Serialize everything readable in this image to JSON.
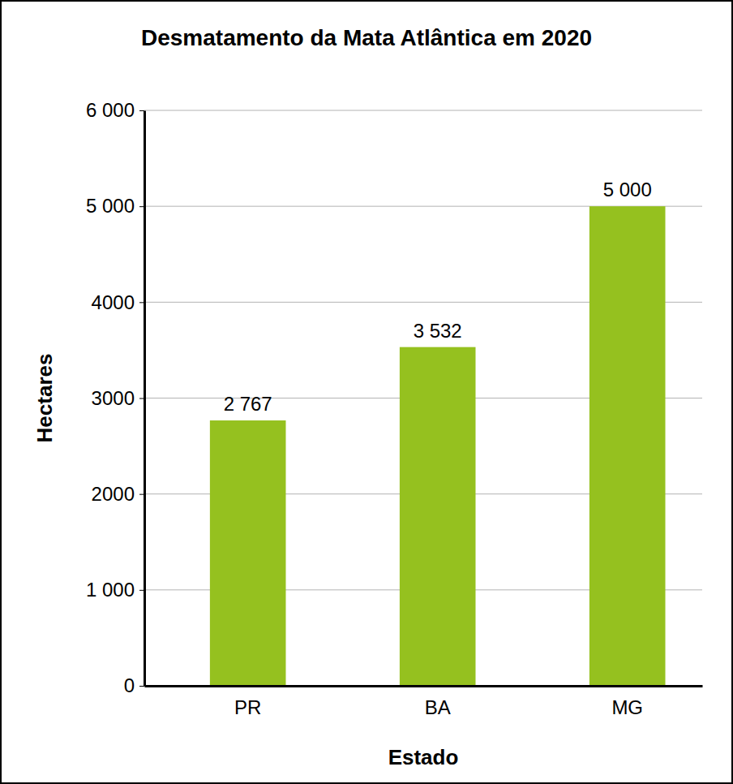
{
  "chart_data": {
    "type": "bar",
    "title": "Desmatamento da Mata Atlântica em 2020",
    "x_label": "Estado",
    "y_label": "Hectares",
    "categories": [
      "PR",
      "BA",
      "MG"
    ],
    "values": [
      2767,
      3532,
      5000
    ],
    "value_labels": [
      "2 767",
      "3 532",
      "5 000"
    ],
    "color": "#95c11f",
    "ylim": [
      0,
      6000
    ],
    "yticks": [
      0,
      {
        "value": 1000,
        "label": "1 000"
      },
      {
        "value": 2000,
        "label": "2000"
      },
      {
        "value": 3000,
        "label": "3000"
      },
      {
        "value": 4000,
        "label": "4000"
      },
      {
        "value": 5000,
        "label": "5 000"
      },
      {
        "value": 6000,
        "label": "6 000"
      }
    ],
    "grid": true,
    "data_labels": true
  }
}
